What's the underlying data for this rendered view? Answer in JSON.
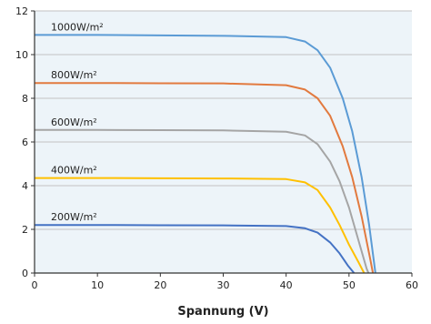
{
  "chart_data": {
    "type": "line",
    "title": "",
    "xlabel": "Spannung (V)",
    "ylabel": "",
    "xlim": [
      0,
      60
    ],
    "ylim": [
      0,
      12
    ],
    "x_ticks": [
      0,
      10,
      20,
      30,
      40,
      50,
      60
    ],
    "y_ticks": [
      0,
      2,
      4,
      6,
      8,
      10,
      12
    ],
    "grid": "horizontal",
    "colors": {
      "plot_background": "#edf4f9",
      "grid": "#c2c2c2",
      "axis": "#333333"
    },
    "series": [
      {
        "name": "1000W/m²",
        "color": "#5b9bd5",
        "points": [
          [
            0,
            10.9
          ],
          [
            10,
            10.9
          ],
          [
            20,
            10.88
          ],
          [
            30,
            10.86
          ],
          [
            40,
            10.8
          ],
          [
            43,
            10.6
          ],
          [
            45,
            10.2
          ],
          [
            47,
            9.4
          ],
          [
            49,
            8.0
          ],
          [
            50.5,
            6.5
          ],
          [
            52,
            4.4
          ],
          [
            53.2,
            2.2
          ],
          [
            54.2,
            0
          ]
        ]
      },
      {
        "name": "800W/m²",
        "color": "#e27a3f",
        "points": [
          [
            0,
            8.7
          ],
          [
            10,
            8.7
          ],
          [
            20,
            8.69
          ],
          [
            30,
            8.68
          ],
          [
            40,
            8.6
          ],
          [
            43,
            8.4
          ],
          [
            45,
            8.0
          ],
          [
            47,
            7.2
          ],
          [
            49,
            5.8
          ],
          [
            50.5,
            4.4
          ],
          [
            52,
            2.6
          ],
          [
            53.4,
            0.6
          ],
          [
            53.8,
            0
          ]
        ]
      },
      {
        "name": "600W/m²",
        "color": "#a5a5a5",
        "points": [
          [
            0,
            6.55
          ],
          [
            10,
            6.55
          ],
          [
            20,
            6.54
          ],
          [
            30,
            6.53
          ],
          [
            40,
            6.47
          ],
          [
            43,
            6.3
          ],
          [
            45,
            5.9
          ],
          [
            47,
            5.1
          ],
          [
            48.5,
            4.2
          ],
          [
            50,
            3.0
          ],
          [
            51.5,
            1.5
          ],
          [
            52.8,
            0.2
          ],
          [
            53.1,
            0
          ]
        ]
      },
      {
        "name": "400W/m²",
        "color": "#ffc000",
        "points": [
          [
            0,
            4.35
          ],
          [
            10,
            4.35
          ],
          [
            20,
            4.34
          ],
          [
            30,
            4.33
          ],
          [
            40,
            4.3
          ],
          [
            43,
            4.15
          ],
          [
            45,
            3.8
          ],
          [
            47,
            3.0
          ],
          [
            48.5,
            2.2
          ],
          [
            50,
            1.3
          ],
          [
            51.5,
            0.5
          ],
          [
            52.4,
            0
          ]
        ]
      },
      {
        "name": "200W/m²",
        "color": "#4472c4",
        "points": [
          [
            0,
            2.2
          ],
          [
            10,
            2.2
          ],
          [
            20,
            2.19
          ],
          [
            30,
            2.18
          ],
          [
            40,
            2.15
          ],
          [
            43,
            2.05
          ],
          [
            45,
            1.85
          ],
          [
            47,
            1.4
          ],
          [
            48.5,
            0.9
          ],
          [
            49.8,
            0.35
          ],
          [
            50.8,
            0
          ]
        ]
      }
    ]
  }
}
